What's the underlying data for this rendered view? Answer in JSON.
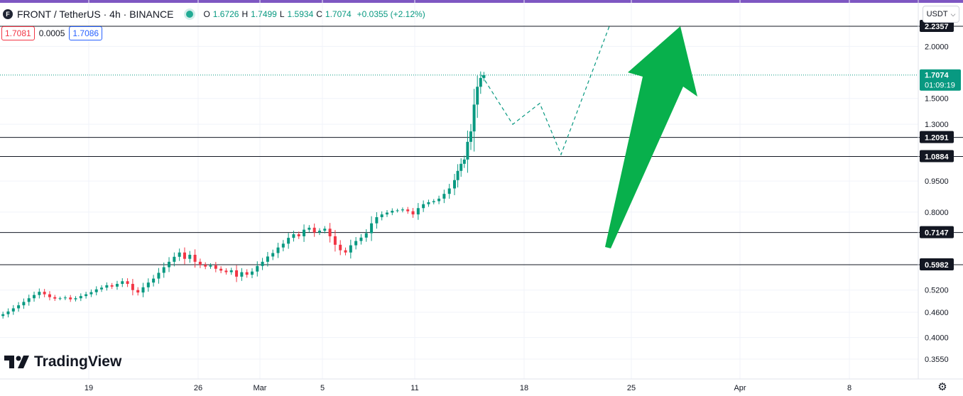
{
  "legend": {
    "symbol_logo": "F",
    "symbol": "FRONT / TetherUS · 4h · BINANCE",
    "open_label": "O",
    "open": "1.6726",
    "high_label": "H",
    "high": "1.7499",
    "low_label": "L",
    "low": "1.5934",
    "close_label": "C",
    "close": "1.7074",
    "change": "+0.0355 (+2.12%)"
  },
  "bid_ask": {
    "sell": "1.7081",
    "spread": "0.0005",
    "buy": "1.7086"
  },
  "currency": {
    "label": "USDT",
    "icon": "chevron-down-icon"
  },
  "branding": {
    "name": "TradingView"
  },
  "colors": {
    "up": "#089981",
    "down": "#f23645",
    "accent": "#7e57c2",
    "arrow": "#08b04c"
  },
  "chart_data": {
    "type": "candlestick",
    "scale": "log",
    "ylim": [
      0.335,
      2.27
    ],
    "y_ticks": [
      "2.0000",
      "1.5000",
      "1.3000",
      "0.9500",
      "0.8000",
      "0.5200",
      "0.4600",
      "0.4000",
      "0.3550"
    ],
    "x_ticks": [
      "19",
      "26",
      "Mar",
      "5",
      "11",
      "18",
      "25",
      "Apr",
      "8"
    ],
    "current_price": {
      "value": 1.7074,
      "label": "1.7074",
      "countdown": "01:09:19"
    },
    "horizontal_levels": [
      {
        "value": 2.2357,
        "label": "2.2357"
      },
      {
        "value": 1.2091,
        "label": "1.2091"
      },
      {
        "value": 1.0884,
        "label": "1.0884"
      },
      {
        "value": 0.7147,
        "label": "0.7147"
      },
      {
        "value": 0.5982,
        "label": "0.5982"
      }
    ],
    "close_series": [
      0.455,
      0.462,
      0.47,
      0.478,
      0.487,
      0.497,
      0.506,
      0.515,
      0.508,
      0.5,
      0.496,
      0.497,
      0.499,
      0.494,
      0.497,
      0.503,
      0.508,
      0.514,
      0.522,
      0.527,
      0.534,
      0.53,
      0.538,
      0.546,
      0.538,
      0.52,
      0.513,
      0.528,
      0.542,
      0.554,
      0.572,
      0.59,
      0.608,
      0.625,
      0.64,
      0.618,
      0.632,
      0.608,
      0.598,
      0.592,
      0.596,
      0.585,
      0.579,
      0.574,
      0.58,
      0.56,
      0.574,
      0.566,
      0.576,
      0.594,
      0.608,
      0.626,
      0.638,
      0.658,
      0.672,
      0.694,
      0.708,
      0.7,
      0.726,
      0.734,
      0.715,
      0.722,
      0.73,
      0.7,
      0.668,
      0.648,
      0.64,
      0.666,
      0.682,
      0.695,
      0.712,
      0.752,
      0.778,
      0.79,
      0.798,
      0.806,
      0.808,
      0.812,
      0.804,
      0.79,
      0.818,
      0.836,
      0.845,
      0.85,
      0.862,
      0.885,
      0.912,
      0.955,
      1.005,
      1.045,
      1.07,
      1.18,
      1.25,
      1.45,
      1.6,
      1.68,
      1.707
    ],
    "forecast_path": [
      1.707,
      1.3,
      1.46,
      1.1,
      2.2357
    ],
    "arrow": {
      "direction": "up",
      "from_price": 0.66,
      "to_price": 2.2357
    }
  }
}
